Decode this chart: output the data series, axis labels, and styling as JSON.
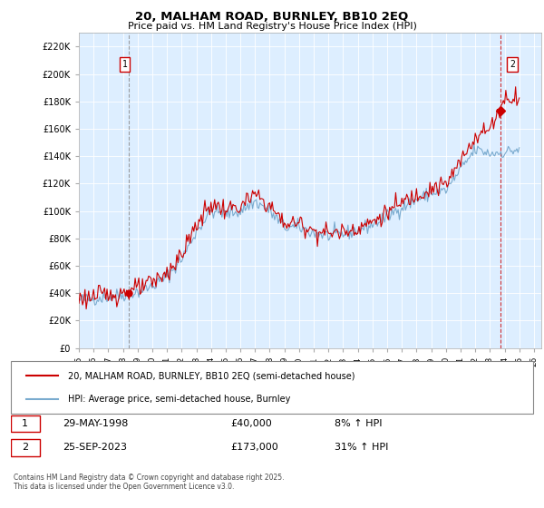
{
  "title": "20, MALHAM ROAD, BURNLEY, BB10 2EQ",
  "subtitle": "Price paid vs. HM Land Registry's House Price Index (HPI)",
  "ylim": [
    0,
    230000
  ],
  "yticks": [
    0,
    20000,
    40000,
    60000,
    80000,
    100000,
    120000,
    140000,
    160000,
    180000,
    200000,
    220000
  ],
  "xlim_start": 1995.0,
  "xlim_end": 2026.5,
  "legend_line1": "20, MALHAM ROAD, BURNLEY, BB10 2EQ (semi-detached house)",
  "legend_line2": "HPI: Average price, semi-detached house, Burnley",
  "transaction1_date": "29-MAY-1998",
  "transaction1_price": "£40,000",
  "transaction1_hpi": "8% ↑ HPI",
  "transaction2_date": "25-SEP-2023",
  "transaction2_price": "£173,000",
  "transaction2_hpi": "31% ↑ HPI",
  "copyright_text": "Contains HM Land Registry data © Crown copyright and database right 2025.\nThis data is licensed under the Open Government Licence v3.0.",
  "line_color_red": "#cc0000",
  "line_color_blue": "#7aabcf",
  "bg_color": "#dce9f5",
  "transaction_marker1_x": 1998.42,
  "transaction_marker1_y": 40000,
  "transaction_marker2_x": 2023.73,
  "transaction_marker2_y": 173000,
  "chart_bg": "#ddeeff"
}
